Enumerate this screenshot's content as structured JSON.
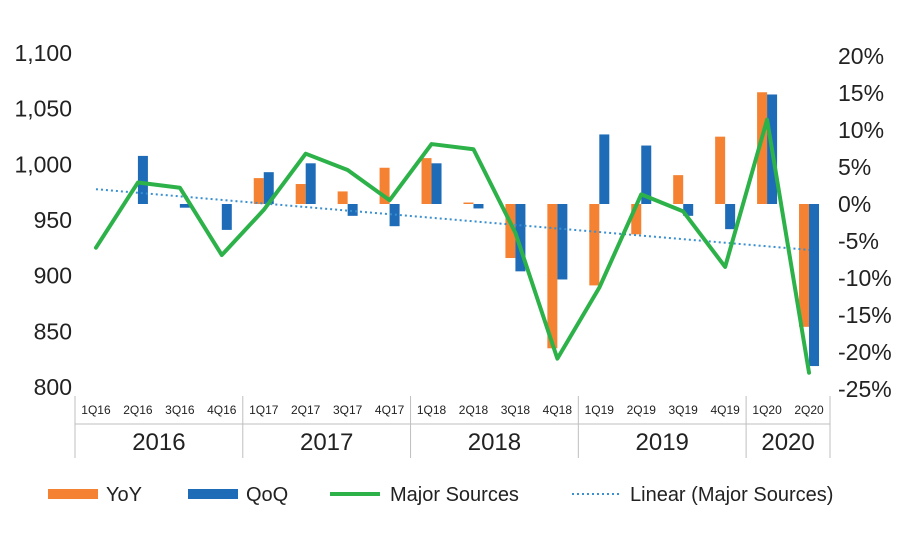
{
  "chart_data": {
    "type": "bar",
    "categories": [
      "1Q16",
      "2Q16",
      "3Q16",
      "4Q16",
      "1Q17",
      "2Q17",
      "3Q17",
      "4Q17",
      "1Q18",
      "2Q18",
      "3Q18",
      "4Q18",
      "1Q19",
      "2Q19",
      "3Q19",
      "4Q19",
      "1Q20",
      "2Q20"
    ],
    "groups": [
      {
        "label": "2016",
        "count": 4
      },
      {
        "label": "2017",
        "count": 4
      },
      {
        "label": "2018",
        "count": 4
      },
      {
        "label": "2019",
        "count": 4
      },
      {
        "label": "2020",
        "count": 2
      }
    ],
    "y_left": {
      "range": [
        800,
        1100
      ],
      "ticks": [
        "800",
        "850",
        "900",
        "950",
        "1,000",
        "1,050",
        "1,100"
      ],
      "tick_values": [
        800,
        850,
        900,
        950,
        1000,
        1050,
        1100
      ]
    },
    "y_right": {
      "range": [
        -25,
        20
      ],
      "ticks": [
        "-25%",
        "-20%",
        "-15%",
        "-10%",
        "-5%",
        "0%",
        "5%",
        "10%",
        "15%",
        "20%"
      ],
      "tick_values": [
        -25,
        -20,
        -15,
        -10,
        -5,
        0,
        5,
        10,
        15,
        20
      ]
    },
    "series": [
      {
        "name": "YoY",
        "type": "bar",
        "axis": "right",
        "color": "#F58232",
        "values": [
          null,
          null,
          null,
          null,
          3.5,
          2.7,
          1.7,
          4.9,
          6.2,
          0.2,
          -7.3,
          -19.5,
          -11.0,
          -4.1,
          3.9,
          9.1,
          15.1,
          -16.6
        ]
      },
      {
        "name": "QoQ",
        "type": "bar",
        "axis": "right",
        "color": "#1E6BB8",
        "values": [
          null,
          6.5,
          -0.5,
          -3.5,
          4.3,
          5.5,
          -1.6,
          -3.0,
          5.5,
          -0.6,
          -9.1,
          -10.2,
          9.4,
          7.9,
          -1.6,
          -3.4,
          14.8,
          -21.9
        ]
      },
      {
        "name": "Major Sources",
        "type": "line",
        "axis": "right",
        "color": "#2DB24A",
        "values": [
          -5.9,
          2.9,
          2.2,
          -6.9,
          -0.8,
          6.8,
          4.6,
          0.5,
          8.1,
          7.4,
          -3.9,
          -20.9,
          -11.3,
          1.3,
          -1.0,
          -8.5,
          11.4,
          -22.8
        ]
      },
      {
        "name": "Linear (Major Sources)",
        "type": "trendline",
        "axis": "right",
        "color": "#3A8FCF",
        "start": 2.0,
        "end": -6.2
      }
    ],
    "legend_position": "bottom",
    "grid": false
  }
}
